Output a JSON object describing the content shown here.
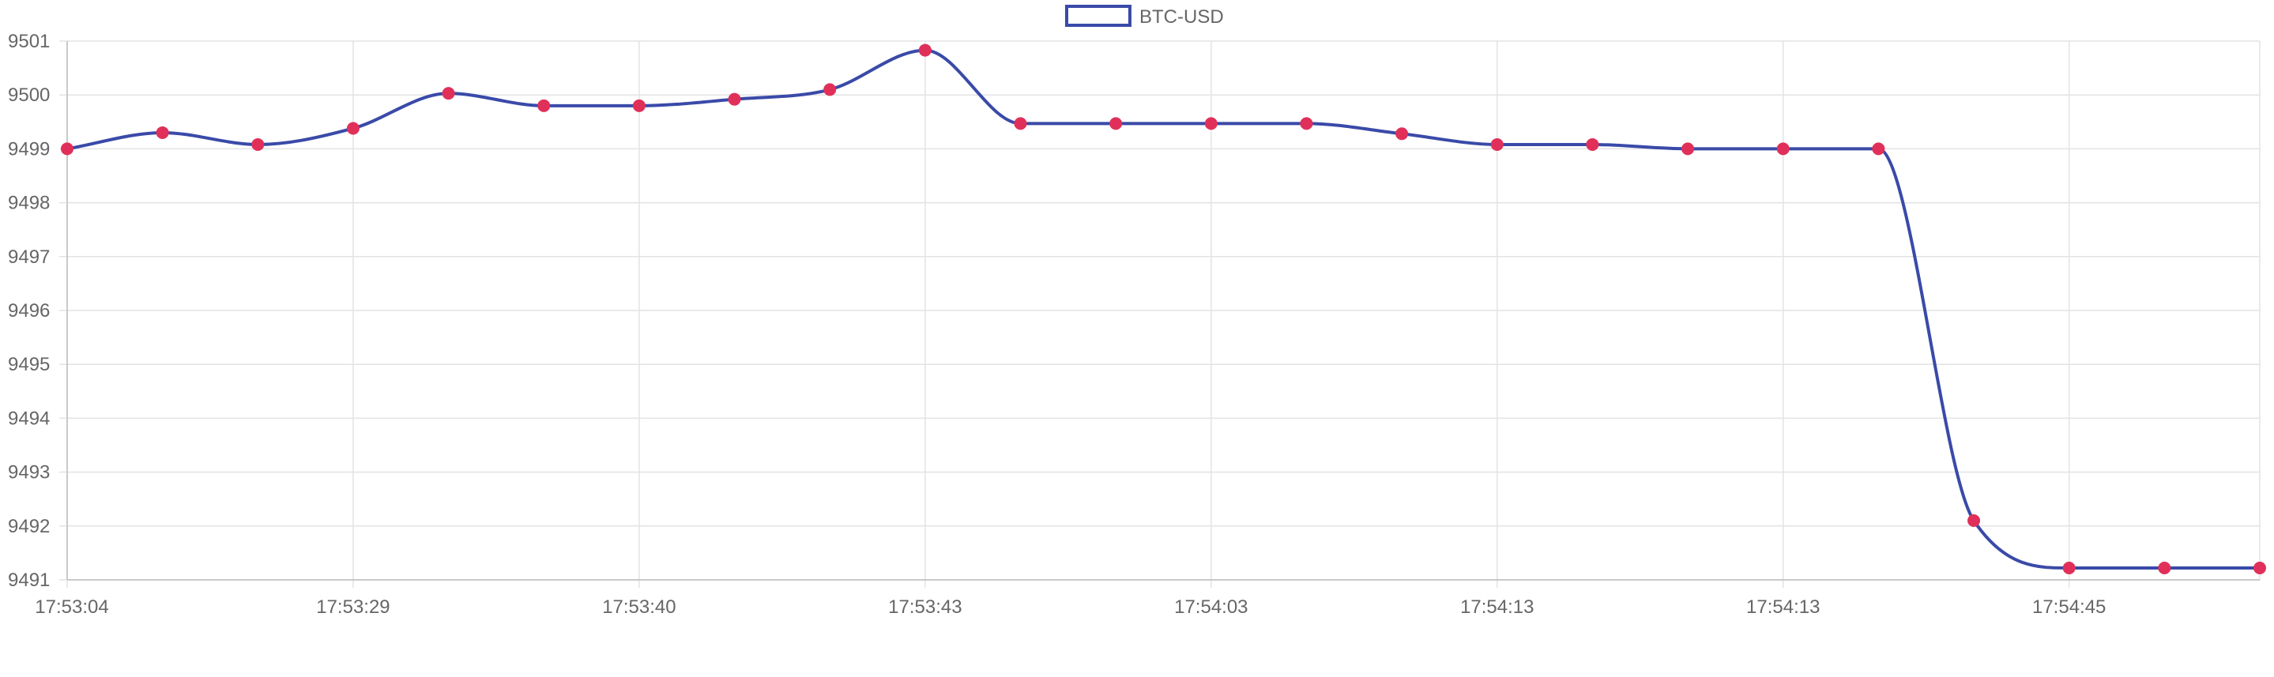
{
  "chart_data": {
    "type": "line",
    "title": "",
    "xlabel": "",
    "ylabel": "",
    "legend": {
      "position": "top-center"
    },
    "ylim": [
      9491,
      9501
    ],
    "y_ticks": [
      "9501",
      "9500",
      "9499",
      "9498",
      "9497",
      "9496",
      "9495",
      "9494",
      "9493",
      "9492",
      "9491"
    ],
    "x_tick_labels": [
      "17:53:04",
      "17:53:29",
      "17:53:40",
      "17:53:43",
      "17:54:03",
      "17:54:13",
      "17:54:13",
      "17:54:45"
    ],
    "grid": true,
    "series": [
      {
        "name": "BTC-USD",
        "values": [
          9499.0,
          9499.3,
          9499.08,
          9499.38,
          9500.03,
          9499.8,
          9499.8,
          9499.92,
          9500.1,
          9500.83,
          9499.47,
          9499.47,
          9499.47,
          9499.47,
          9499.28,
          9499.08,
          9499.08,
          9499.0,
          9499.0,
          9499.0,
          9492.1,
          9491.22,
          9491.22,
          9491.22
        ]
      }
    ],
    "colors": {
      "line": "#3a4aa8",
      "point": "#e0305a",
      "grid": "#e3e3e3",
      "axis": "#c9c9c9",
      "tick_text": "#666666"
    }
  }
}
